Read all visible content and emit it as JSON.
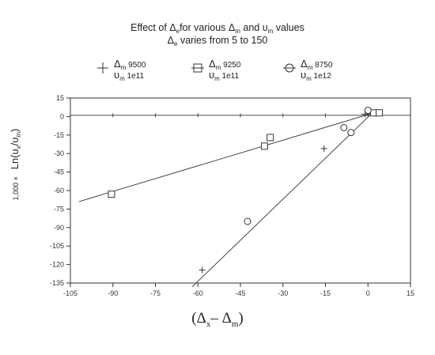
{
  "chart_data": {
    "type": "scatter",
    "title_line1_prefix": "Effect of Δ",
    "title_line1_sub": "e",
    "title_line1_suffix": "for various Δ",
    "title_line1_sub2": "m",
    "title_line1_mid": " and υ",
    "title_line1_sub3": "m",
    "title_line1_end": " values",
    "title_line2_prefix": "Δ",
    "title_line2_sub": "e",
    "title_line2_suffix": " varies from 5 to 150",
    "ylabel_prefix": "1,000 ×",
    "ylabel_main_prefix": "Ln(υ",
    "ylabel_main_sub1": "x",
    "ylabel_main_mid": "/υ",
    "ylabel_main_sub2": "m",
    "ylabel_main_end": ")",
    "xlabel_open": "(Δ",
    "xlabel_sub1": "x",
    "xlabel_mid": "– Δ",
    "xlabel_sub2": "m",
    "xlabel_close": ")",
    "xlim": [
      -105,
      15
    ],
    "ylim": [
      -135,
      15
    ],
    "xticks": [
      -105,
      -90,
      -75,
      -60,
      -45,
      -30,
      -15,
      0,
      15
    ],
    "yticks": [
      15,
      0,
      -15,
      -30,
      -45,
      -60,
      -75,
      -90,
      -105,
      -120,
      -135
    ],
    "xtick_labels": [
      "-105",
      "-90",
      "-75",
      "-60",
      "-45",
      "-30",
      "-15",
      "0",
      "15"
    ],
    "ytick_labels": [
      "15",
      "0",
      "-15",
      "-30",
      "-45",
      "-60",
      "-75",
      "-90",
      "-105",
      "-120",
      "-135"
    ],
    "grid": false,
    "legend_position": "top",
    "series": [
      {
        "marker": "plus",
        "name_line1_symbol": "Δ",
        "name_line1_sub": "m",
        "name_line1_value": " 9500",
        "name_line2_symbol": "υ",
        "name_line2_sub": "m",
        "name_line2_value": " 1e11",
        "points": [
          [
            -58.5,
            -124.5
          ],
          [
            -15.5,
            -26
          ],
          [
            -1,
            2
          ],
          [
            1,
            3
          ]
        ],
        "fit_line": [
          [
            -62,
            -138
          ],
          [
            2,
            4
          ]
        ],
        "flat_line": [
          [
            -105,
            1
          ],
          [
            15,
            1
          ]
        ],
        "flat_line_ticks": [
          -105,
          -90,
          -75,
          -60,
          -45,
          -30,
          -15,
          0,
          15
        ]
      },
      {
        "marker": "square",
        "name_line1_symbol": "Δ",
        "name_line1_sub": "m",
        "name_line1_value": " 9250",
        "name_line2_symbol": "υ",
        "name_line2_sub": "m",
        "name_line2_value": " 1e11",
        "points": [
          [
            -90.5,
            -63
          ],
          [
            -36.5,
            -24
          ],
          [
            -34.5,
            -17
          ],
          [
            2,
            3
          ],
          [
            4,
            3
          ]
        ],
        "fit_line": [
          [
            -102,
            -69
          ],
          [
            2,
            3
          ]
        ]
      },
      {
        "marker": "circle",
        "name_line1_symbol": "Δ",
        "name_line1_sub": "m",
        "name_line1_value": " 8750",
        "name_line2_symbol": "υ",
        "name_line2_sub": "m",
        "name_line2_value": " 1e12",
        "points": [
          [
            -42.5,
            -85
          ],
          [
            -8.5,
            -9
          ],
          [
            -6,
            -13
          ],
          [
            0,
            5
          ]
        ]
      }
    ]
  }
}
